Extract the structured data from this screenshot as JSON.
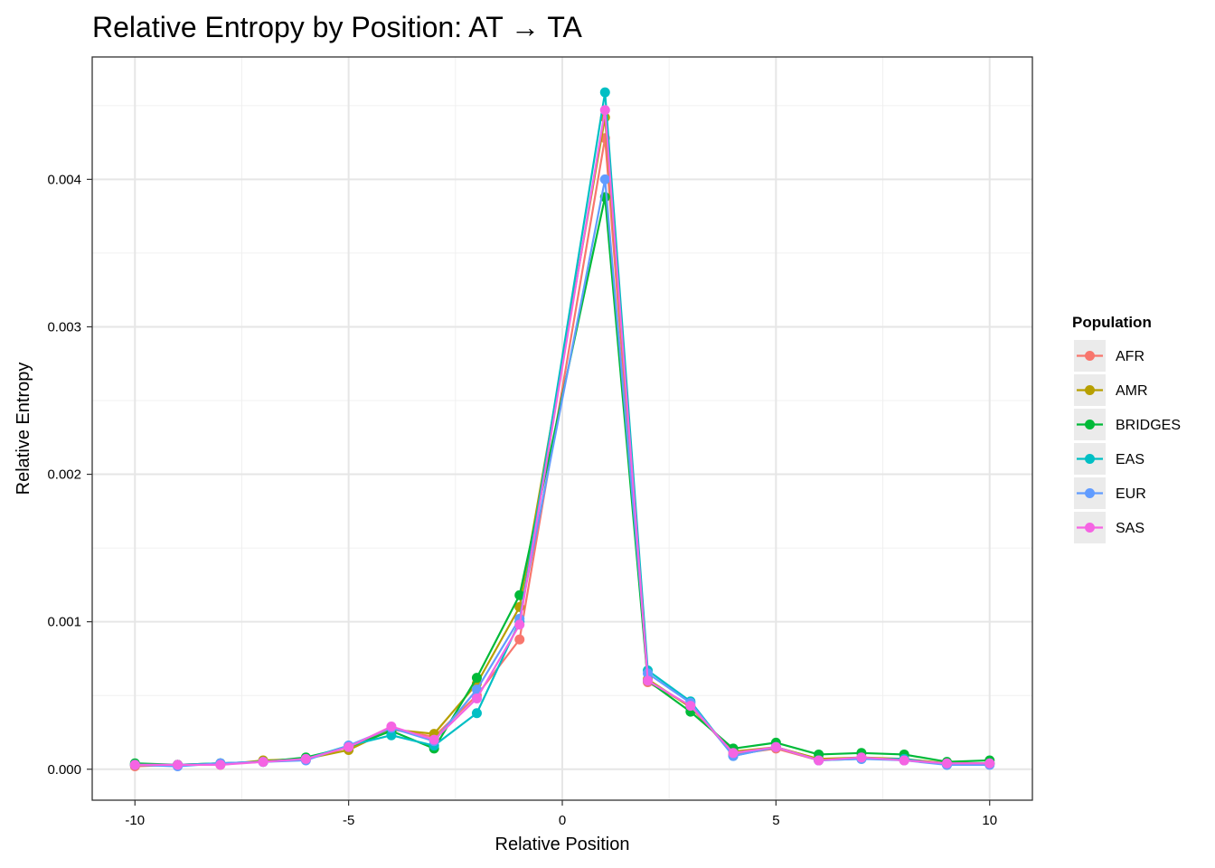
{
  "chart_data": {
    "type": "line",
    "title": "Relative Entropy by Position: AT → TA",
    "xlabel": "Relative Position",
    "ylabel": "Relative Entropy",
    "xlim": [
      -11,
      11
    ],
    "ylim": [
      -0.00021,
      0.00483
    ],
    "x_ticks": [
      -10,
      -5,
      0,
      5,
      10
    ],
    "x_tick_labels": [
      "-10",
      "-5",
      "0",
      "5",
      "10"
    ],
    "y_ticks": [
      0,
      0.001,
      0.002,
      0.003,
      0.004
    ],
    "y_tick_labels": [
      "0.000",
      "0.001",
      "0.002",
      "0.003",
      "0.004"
    ],
    "grid": true,
    "legend_position": "right",
    "legend_title": "Population",
    "x": [
      -10,
      -9,
      -8,
      -7,
      -6,
      -5,
      -4,
      -3,
      -2,
      -1,
      1,
      2,
      3,
      4,
      5,
      6,
      7,
      8,
      9,
      10
    ],
    "series": [
      {
        "name": "AFR",
        "color": "#F8766D",
        "values": [
          2e-05,
          3e-05,
          4e-05,
          5e-05,
          7e-05,
          0.00015,
          0.00027,
          0.00022,
          0.0005,
          0.00088,
          0.00428,
          0.00059,
          0.00043,
          0.0001,
          0.00014,
          6e-05,
          8e-05,
          6e-05,
          4e-05,
          4e-05
        ]
      },
      {
        "name": "AMR",
        "color": "#B79F00",
        "values": [
          3e-05,
          3e-05,
          3e-05,
          6e-05,
          7e-05,
          0.00013,
          0.00027,
          0.00024,
          0.00058,
          0.0011,
          0.00442,
          0.00061,
          0.00042,
          0.00012,
          0.00015,
          7e-05,
          8e-05,
          7e-05,
          4e-05,
          4e-05
        ]
      },
      {
        "name": "BRIDGES",
        "color": "#00BA38",
        "values": [
          4e-05,
          3e-05,
          4e-05,
          5e-05,
          8e-05,
          0.00015,
          0.00026,
          0.00014,
          0.00062,
          0.00118,
          0.00388,
          0.0006,
          0.00039,
          0.00014,
          0.00018,
          0.0001,
          0.00011,
          0.0001,
          5e-05,
          6e-05
        ]
      },
      {
        "name": "EAS",
        "color": "#00BFC4",
        "values": [
          3e-05,
          3e-05,
          4e-05,
          5e-05,
          7e-05,
          0.00016,
          0.00023,
          0.00016,
          0.00038,
          0.001,
          0.00459,
          0.00067,
          0.00046,
          9e-05,
          0.00015,
          6e-05,
          7e-05,
          7e-05,
          3e-05,
          4e-05
        ]
      },
      {
        "name": "EUR",
        "color": "#619CFF",
        "values": [
          3e-05,
          2e-05,
          4e-05,
          5e-05,
          6e-05,
          0.00016,
          0.00028,
          0.00019,
          0.00054,
          0.00102,
          0.004,
          0.00065,
          0.00045,
          9e-05,
          0.00015,
          6e-05,
          7e-05,
          6e-05,
          3e-05,
          3e-05
        ]
      },
      {
        "name": "SAS",
        "color": "#F564E3",
        "values": [
          3e-05,
          3e-05,
          3e-05,
          5e-05,
          7e-05,
          0.00015,
          0.00029,
          0.0002,
          0.00048,
          0.00098,
          0.00447,
          0.0006,
          0.00043,
          0.00011,
          0.00015,
          6e-05,
          8e-05,
          6e-05,
          4e-05,
          4e-05
        ]
      }
    ]
  }
}
